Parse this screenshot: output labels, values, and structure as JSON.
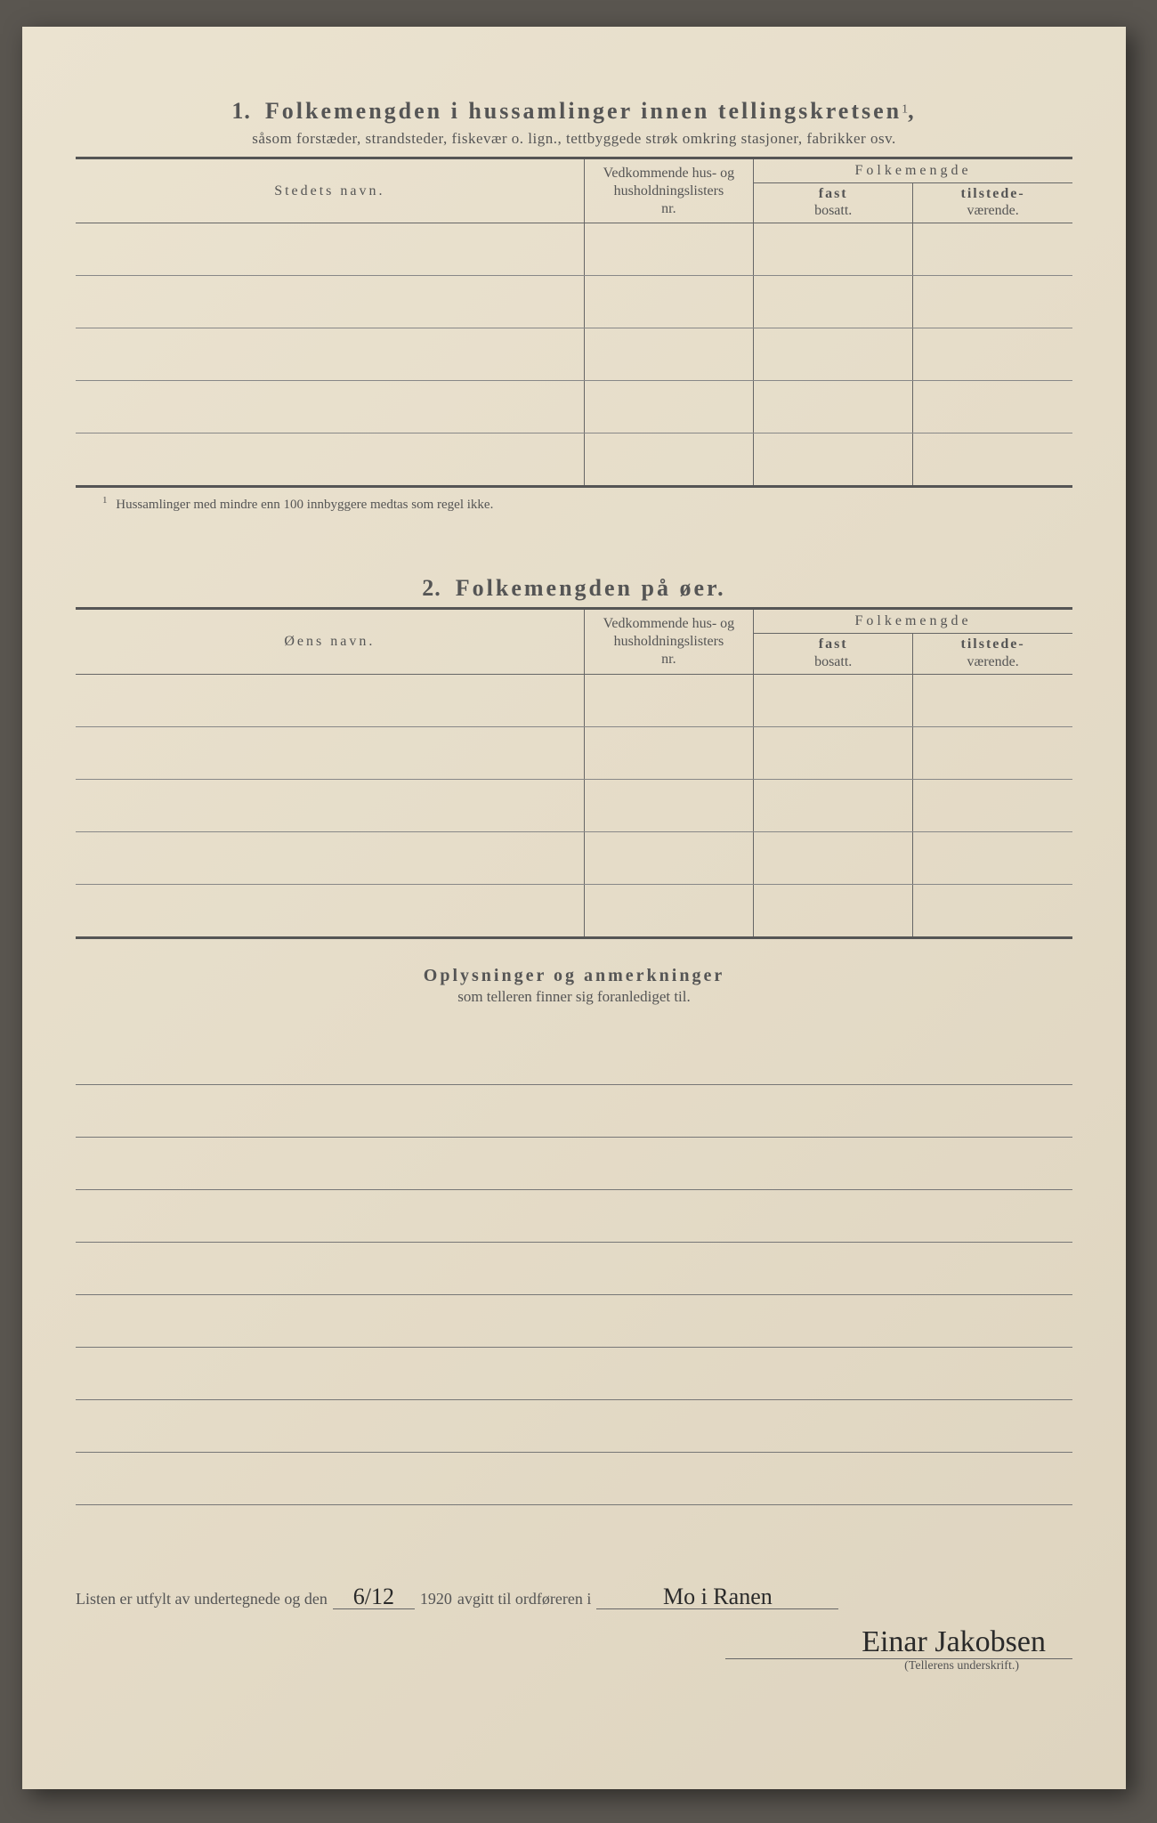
{
  "section1": {
    "number": "1.",
    "title": "Folkemengden i hussamlinger innen tellingskretsen",
    "title_sup": "1",
    "subtitle": "såsom forstæder, strandsteder, fiskevær o. lign., tettbyggede strøk omkring stasjoner, fabrikker osv.",
    "col_name": "Stedets navn.",
    "col_nr_l1": "Vedkommende hus- og",
    "col_nr_l2": "husholdningslisters",
    "col_nr_l3": "nr.",
    "col_pop": "Folkemengde",
    "col_fast_b": "fast",
    "col_fast_s": "bosatt.",
    "col_til_b": "tilstede-",
    "col_til_s": "værende.",
    "footnote_num": "1",
    "footnote": "Hussamlinger med mindre enn 100 innbyggere medtas som regel ikke.",
    "row_count": 5
  },
  "section2": {
    "number": "2.",
    "title": "Folkemengden på øer.",
    "col_name": "Øens navn.",
    "row_count": 5
  },
  "oplysninger": {
    "title": "Oplysninger og anmerkninger",
    "subtitle": "som telleren finner sig foranlediget til.",
    "line_count": 9
  },
  "footer": {
    "text1": "Listen er utfylt av undertegnede og den",
    "date_handwritten": "6/12",
    "year": "1920",
    "text2": "avgitt til ordføreren i",
    "place_handwritten": "Mo i Ranen",
    "signature": "Einar Jakobsen",
    "sig_caption": "(Tellerens underskrift.)"
  },
  "colors": {
    "paper": "#e8e0ce",
    "ink": "#555555",
    "handwriting": "#2a2a2a"
  }
}
